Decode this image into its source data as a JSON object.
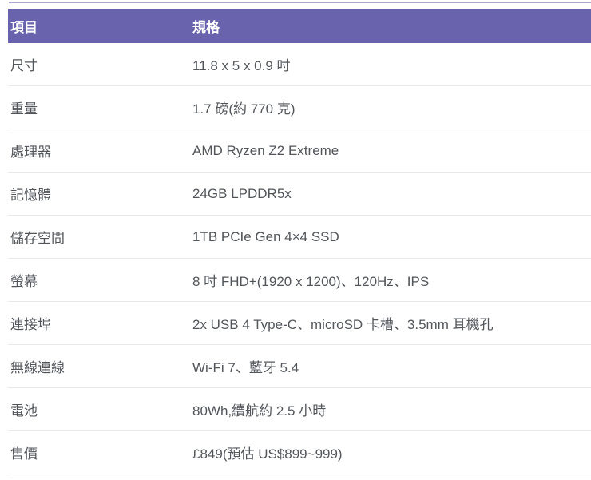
{
  "table": {
    "header": {
      "col1": "項目",
      "col2": "規格"
    },
    "rows": [
      {
        "label": "尺寸",
        "value": "11.8 x 5 x 0.9 吋"
      },
      {
        "label": "重量",
        "value": "1.7 磅(約 770 克)"
      },
      {
        "label": "處理器",
        "value": "AMD Ryzen Z2 Extreme"
      },
      {
        "label": "記憶體",
        "value": "24GB LPDDR5x"
      },
      {
        "label": "儲存空間",
        "value": "1TB PCIe Gen 4×4 SSD"
      },
      {
        "label": "螢幕",
        "value": "8 吋 FHD+(1920 x 1200)、120Hz、IPS"
      },
      {
        "label": "連接埠",
        "value": "2x USB 4 Type-C、microSD 卡槽、3.5mm 耳機孔"
      },
      {
        "label": "無線連線",
        "value": "Wi-Fi 7、藍牙 5.4"
      },
      {
        "label": "電池",
        "value": "80Wh,續航約 2.5 小時"
      },
      {
        "label": "售價",
        "value": "£849(預估 US$899~999)"
      }
    ],
    "colors": {
      "header_bg": "#6863ac",
      "header_text": "#ffffff",
      "body_text": "#52565b",
      "divider": "#e9e9e9",
      "top_line": "#aca7d4"
    }
  }
}
